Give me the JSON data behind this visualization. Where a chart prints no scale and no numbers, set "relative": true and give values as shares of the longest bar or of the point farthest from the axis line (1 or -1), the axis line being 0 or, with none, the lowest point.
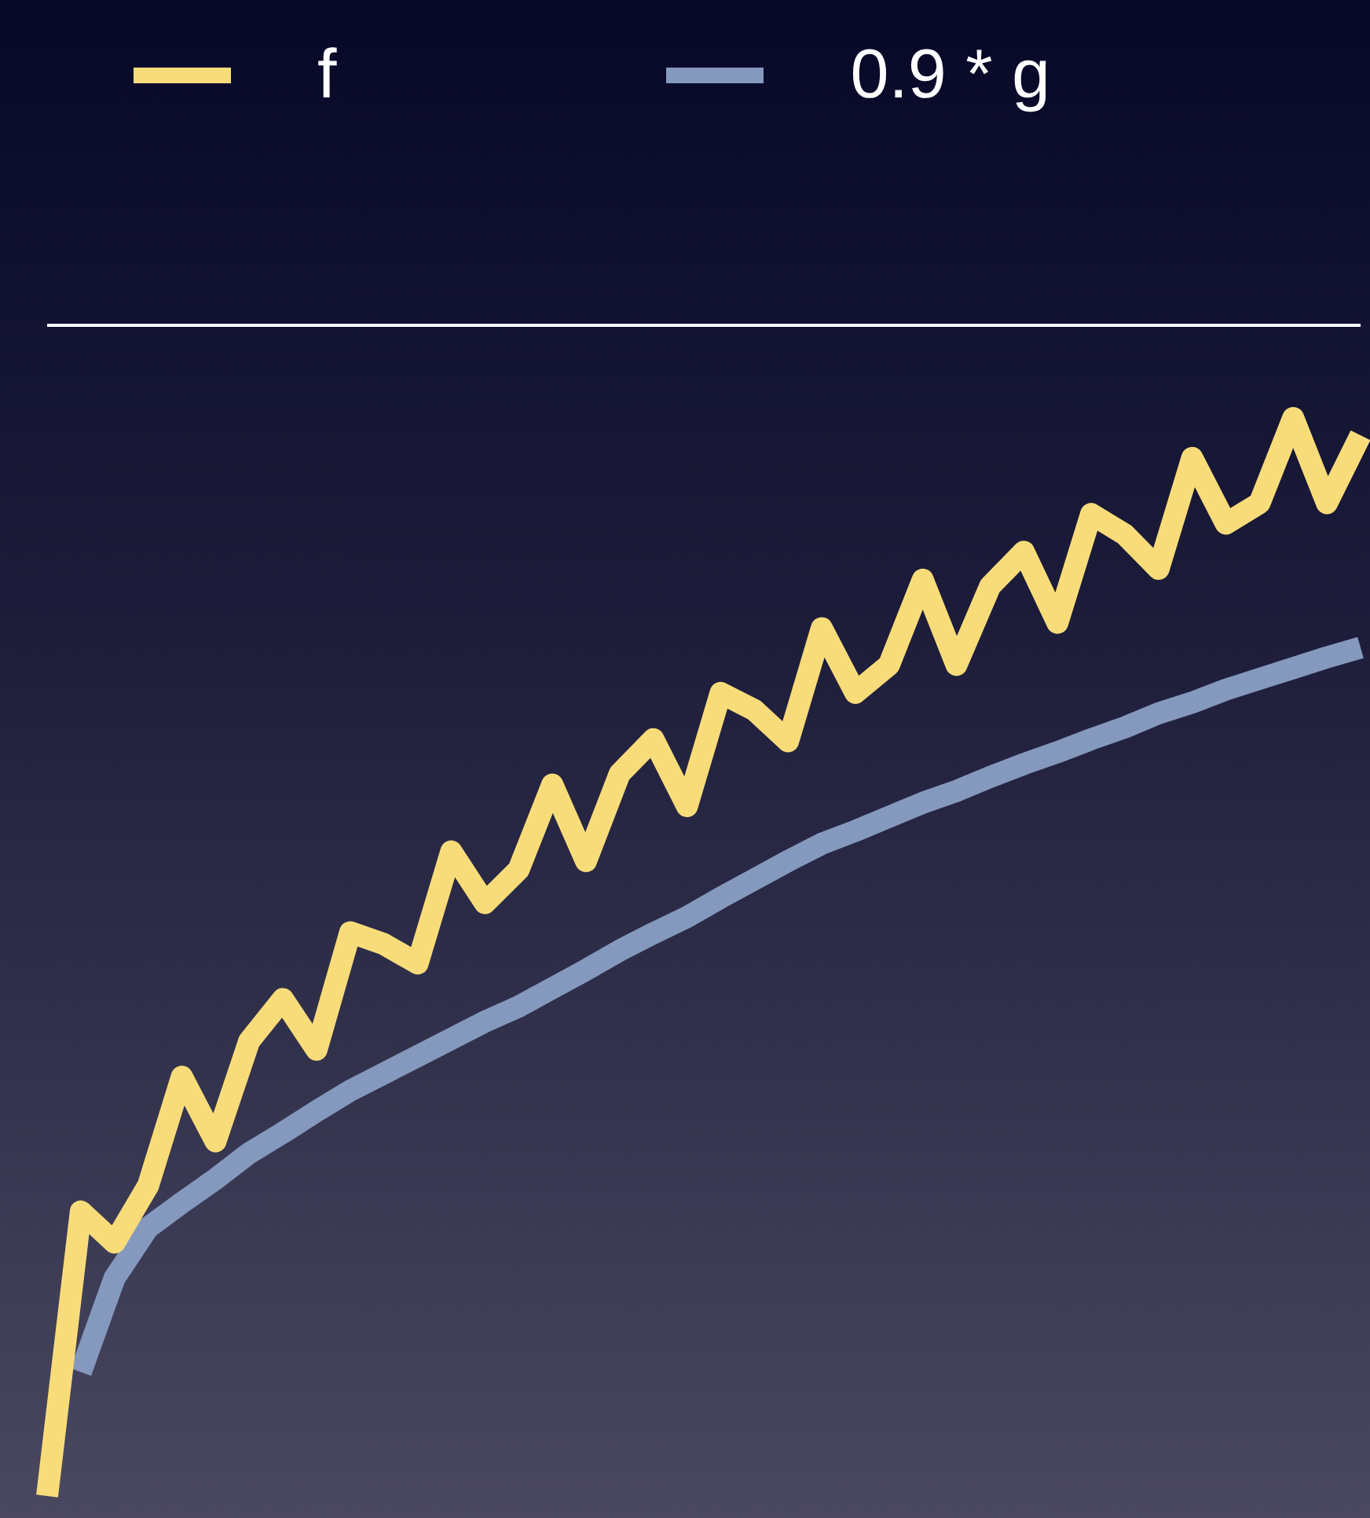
{
  "chart_data": {
    "type": "line",
    "relative": true,
    "legend": "top",
    "categories": [
      null,
      null,
      null,
      null,
      null,
      null,
      null,
      null,
      null,
      null,
      null,
      null,
      null,
      null,
      null,
      null,
      null,
      null,
      null,
      null,
      null,
      null,
      null,
      null,
      null,
      null,
      null,
      null,
      null,
      null,
      null,
      null,
      null,
      null,
      null,
      null,
      null,
      null,
      null,
      null
    ],
    "series": [
      {
        "name": "f",
        "color": "#f9dc7a",
        "values": [
          0,
          0.264,
          0.235,
          0.288,
          0.389,
          0.329,
          0.422,
          0.461,
          0.414,
          0.523,
          0.512,
          0.494,
          0.598,
          0.55,
          0.581,
          0.66,
          0.589,
          0.67,
          0.702,
          0.64,
          0.745,
          0.729,
          0.7,
          0.805,
          0.745,
          0.771,
          0.85,
          0.771,
          0.844,
          0.876,
          0.81,
          0.911,
          0.892,
          0.86,
          0.963,
          0.902,
          0.921,
          1,
          0.921,
          0.984
        ]
      },
      {
        "name": "0.9 * g",
        "color": "#8499bd",
        "values": [
          null,
          0.115,
          0.202,
          0.249,
          0.272,
          0.294,
          0.318,
          0.337,
          0.357,
          0.376,
          0.392,
          0.408,
          0.424,
          0.44,
          0.454,
          0.471,
          0.488,
          0.506,
          0.522,
          0.537,
          0.555,
          0.572,
          0.589,
          0.605,
          0.617,
          0.63,
          0.643,
          0.654,
          0.667,
          0.679,
          0.69,
          0.702,
          0.713,
          0.726,
          0.736,
          0.748,
          0.758,
          0.768,
          0.778,
          0.787
        ]
      }
    ]
  }
}
